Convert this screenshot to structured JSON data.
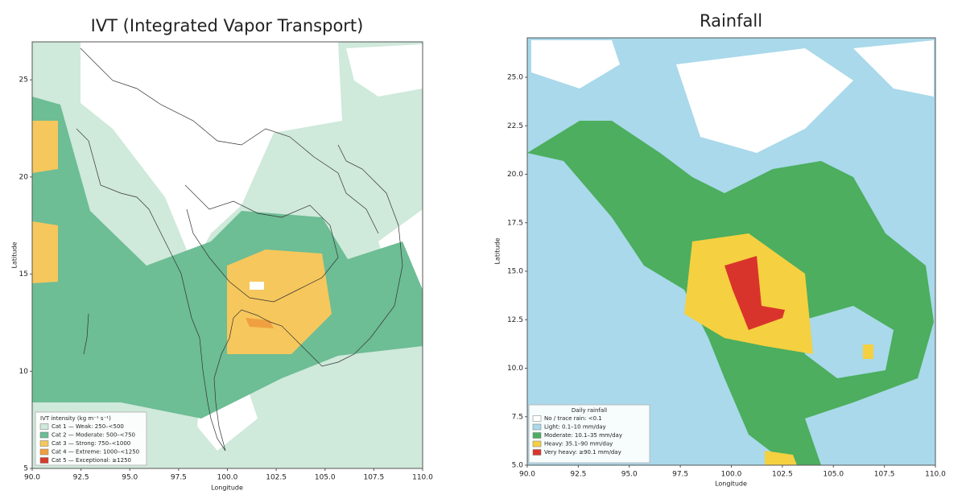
{
  "panels": [
    {
      "title": "IVT (Integrated Vapor Transport)",
      "xlabel": "Longitude",
      "ylabel": "Latitude",
      "xticks": [
        "90.0",
        "92.5",
        "95.0",
        "97.5",
        "100.0",
        "102.5",
        "105.0",
        "107.5",
        "110.0"
      ],
      "yticks": [
        "5",
        "10",
        "15",
        "20",
        "25"
      ],
      "legend": {
        "title": "IVT intensity (kg m⁻¹ s⁻¹)",
        "entries": [
          {
            "label": "Cat 1 — Weak: 250–<500",
            "color": "#cfe9db"
          },
          {
            "label": "Cat 2 — Moderate: 500–<750",
            "color": "#6dbd95"
          },
          {
            "label": "Cat 3 — Strong: 750–<1000",
            "color": "#f6c75c"
          },
          {
            "label": "Cat 4 — Extreme: 1000–<1250",
            "color": "#f0a040"
          },
          {
            "label": "Cat 5 — Exceptional: ≥1250",
            "color": "#d63a2a"
          }
        ]
      }
    },
    {
      "title": "Rainfall",
      "xlabel": "Longitude",
      "ylabel": "Latitude",
      "xticks": [
        "90.0",
        "92.5",
        "95.0",
        "97.5",
        "100.0",
        "102.5",
        "105.0",
        "107.5",
        "110.0"
      ],
      "yticks": [
        "5.0",
        "7.5",
        "10.0",
        "12.5",
        "15.0",
        "17.5",
        "20.0",
        "22.5",
        "25.0"
      ],
      "legend": {
        "title": "Daily rainfall",
        "entries": [
          {
            "label": "No / trace rain: <0.1",
            "color": "#ffffff"
          },
          {
            "label": "Light: 0.1–10 mm/day",
            "color": "#a9d9ea"
          },
          {
            "label": "Moderate: 10.1–35 mm/day",
            "color": "#4cae5e"
          },
          {
            "label": "Heavy: 35.1–90 mm/day",
            "color": "#f5d040"
          },
          {
            "label": "Very heavy: ≥90.1 mm/day",
            "color": "#d9342b"
          }
        ]
      }
    }
  ]
}
